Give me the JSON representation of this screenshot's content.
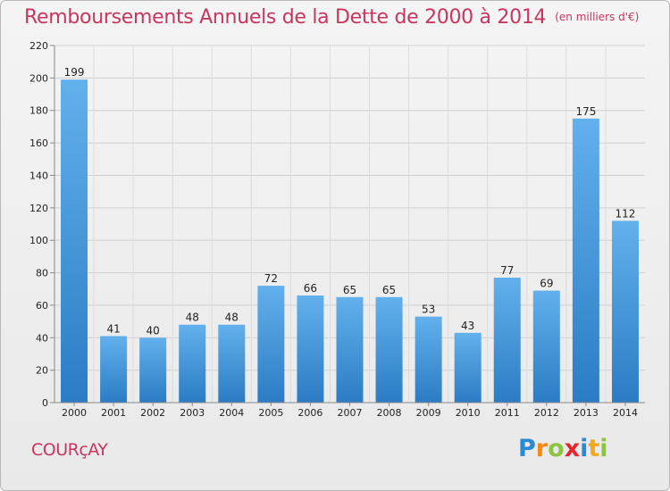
{
  "title": "Remboursements Annuels de la Dette de 2000 à 2014",
  "unit": "(en milliers d'€)",
  "commune": "COURçAY",
  "logo": {
    "letters": [
      "P",
      "r",
      "o",
      "x",
      "i",
      "t",
      "i"
    ],
    "colors": [
      "#2a8ad4",
      "#f08a1c",
      "#8cc63e",
      "#e8262b",
      "#2a8ad4",
      "#f0a81c",
      "#8cc63e"
    ]
  },
  "colors": {
    "bar": "#3a8fd6",
    "bar_light": "#62b0ec",
    "title": "#c8365d",
    "grid": "#d0d0d0"
  },
  "chart_data": {
    "type": "bar",
    "categories": [
      "2000",
      "2001",
      "2002",
      "2003",
      "2004",
      "2005",
      "2006",
      "2007",
      "2008",
      "2009",
      "2010",
      "2011",
      "2012",
      "2013",
      "2014"
    ],
    "values": [
      199,
      41,
      40,
      48,
      48,
      72,
      66,
      65,
      65,
      53,
      43,
      77,
      69,
      175,
      112
    ],
    "ylim": [
      0,
      220
    ],
    "yticks": [
      0,
      20,
      40,
      60,
      80,
      100,
      120,
      140,
      160,
      180,
      200,
      220
    ],
    "grid": true,
    "data_labels": true
  }
}
